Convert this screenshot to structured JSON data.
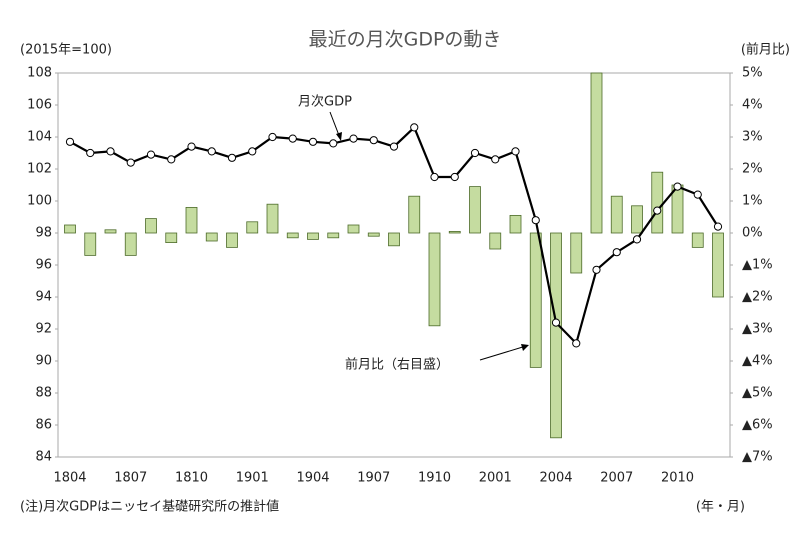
{
  "chart_data": {
    "type": "bar",
    "title": "最近の月次GDPの動き",
    "ylabel": "(2015年=100)",
    "y2label": "(前月比)",
    "xlabel": "(年・月)",
    "note": "(注)月次GDPはニッセイ基礎研究所の推計値",
    "categories": [
      "1804",
      null,
      null,
      "1807",
      null,
      null,
      "1810",
      null,
      null,
      "1901",
      null,
      null,
      "1904",
      null,
      null,
      "1907",
      null,
      null,
      "1910",
      null,
      null,
      "2001",
      null,
      null,
      "2004",
      null,
      null,
      "2007",
      null,
      null,
      "2010",
      null,
      null
    ],
    "ylim": [
      84,
      108
    ],
    "yticks": [
      84,
      86,
      88,
      90,
      92,
      94,
      96,
      98,
      100,
      102,
      104,
      106,
      108
    ],
    "y2lim": [
      -7,
      5
    ],
    "y2ticks": [
      {
        "value": -7,
        "label": "▲7%"
      },
      {
        "value": -6,
        "label": "▲6%"
      },
      {
        "value": -5,
        "label": "▲5%"
      },
      {
        "value": -4,
        "label": "▲4%"
      },
      {
        "value": -3,
        "label": "▲3%"
      },
      {
        "value": -2,
        "label": "▲2%"
      },
      {
        "value": -1,
        "label": "▲1%"
      },
      {
        "value": 0,
        "label": "0%"
      },
      {
        "value": 1,
        "label": "1%"
      },
      {
        "value": 2,
        "label": "2%"
      },
      {
        "value": 3,
        "label": "3%"
      },
      {
        "value": 4,
        "label": "4%"
      },
      {
        "value": 5,
        "label": "5%"
      }
    ],
    "series": [
      {
        "name": "月次GDP",
        "type": "line",
        "color": "#000000",
        "values": [
          103.7,
          103.0,
          103.1,
          102.4,
          102.9,
          102.6,
          103.4,
          103.1,
          102.7,
          103.1,
          104.0,
          103.9,
          103.7,
          103.6,
          103.9,
          103.8,
          103.4,
          104.6,
          101.5,
          101.5,
          103.0,
          102.6,
          103.1,
          98.8,
          92.4,
          91.1,
          95.7,
          96.8,
          97.6,
          99.4,
          100.9,
          100.4,
          98.4
        ]
      },
      {
        "name": "前月比（右目盛）",
        "type": "bar",
        "axis": "y2",
        "color": "#c5dca0",
        "values": [
          0.25,
          -0.7,
          0.1,
          -0.7,
          0.45,
          -0.3,
          0.8,
          -0.25,
          -0.45,
          0.35,
          0.9,
          -0.15,
          -0.2,
          -0.15,
          0.25,
          -0.1,
          -0.4,
          1.15,
          -2.9,
          0.05,
          1.45,
          -0.5,
          0.55,
          -4.2,
          -6.4,
          -1.25,
          5.0,
          1.15,
          0.85,
          1.9,
          1.5,
          -0.45,
          -2.0
        ]
      }
    ]
  }
}
